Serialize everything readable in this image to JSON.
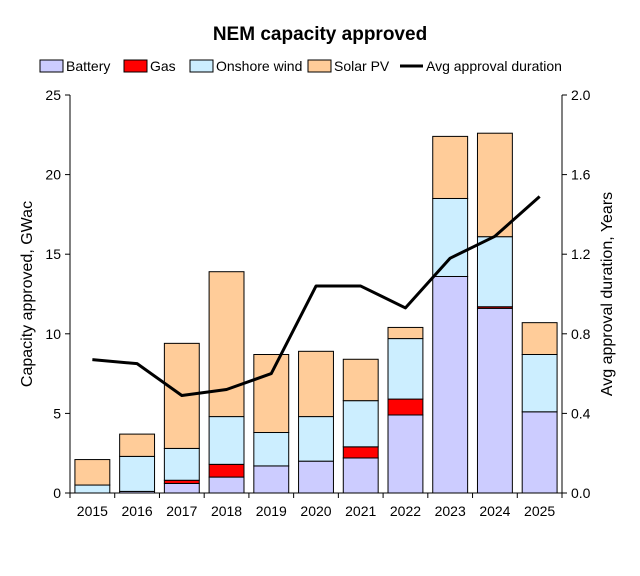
{
  "chart_data": {
    "type": "bar",
    "title": "NEM capacity approved",
    "xlabel": "",
    "ylabel": "Capacity approved, GWac",
    "y2label": "Avg approval duration, Years",
    "ylim": [
      0,
      25
    ],
    "y2lim": [
      0,
      2.0
    ],
    "yticks": [
      "0",
      "5",
      "10",
      "15",
      "20",
      "25"
    ],
    "y2ticks": [
      "0.0",
      "0.4",
      "0.8",
      "1.2",
      "1.6",
      "2.0"
    ],
    "categories": [
      "2015",
      "2016",
      "2017",
      "2018",
      "2019",
      "2020",
      "2021",
      "2022",
      "2023",
      "2024",
      "2025"
    ],
    "stacked": true,
    "grid": false,
    "legend": "top",
    "series": [
      {
        "name": "Battery",
        "kind": "bar",
        "color": "#ccccff",
        "values": [
          0,
          0.1,
          0.6,
          1.0,
          1.7,
          2.0,
          2.2,
          4.9,
          13.6,
          11.6,
          5.1
        ]
      },
      {
        "name": "Gas",
        "kind": "bar",
        "color": "#ff0000",
        "values": [
          0,
          0,
          0.2,
          0.8,
          0,
          0,
          0.7,
          1.0,
          0,
          0.1,
          0
        ]
      },
      {
        "name": "Onshore wind",
        "kind": "bar",
        "color": "#cceeff",
        "values": [
          0.5,
          2.2,
          2.0,
          3.0,
          2.1,
          2.8,
          2.9,
          3.8,
          4.9,
          4.4,
          3.6
        ]
      },
      {
        "name": "Solar PV",
        "kind": "bar",
        "color": "#ffcc99",
        "values": [
          1.6,
          1.4,
          6.6,
          9.1,
          4.9,
          4.1,
          2.6,
          0.7,
          3.9,
          6.5,
          2.0
        ]
      },
      {
        "name": "Avg approval duration",
        "kind": "line",
        "axis": "right",
        "color": "#000000",
        "values": [
          0.67,
          0.65,
          0.49,
          0.52,
          0.6,
          1.04,
          1.04,
          0.93,
          1.18,
          1.29,
          1.49
        ]
      }
    ]
  }
}
